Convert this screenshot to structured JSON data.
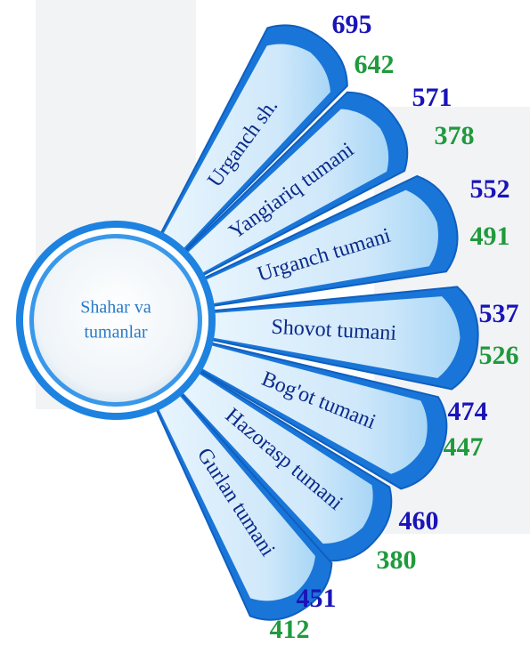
{
  "center_label": [
    "Shahar va",
    "tumanlar"
  ],
  "items": [
    {
      "name": "Urganch sh.",
      "value_1": 695,
      "value_2": 642
    },
    {
      "name": "Yangiariq tumani",
      "value_1": 571,
      "value_2": 378
    },
    {
      "name": "Urganch tumani",
      "value_1": 552,
      "value_2": 491
    },
    {
      "name": "Shovot tumani",
      "value_1": 537,
      "value_2": 526
    },
    {
      "name": "Bog'ot tumani",
      "value_1": 474,
      "value_2": 447
    },
    {
      "name": "Hazorasp tumani",
      "value_1": 460,
      "value_2": 380
    },
    {
      "name": "Gurlan tumani",
      "value_1": 451,
      "value_2": 412
    }
  ]
}
